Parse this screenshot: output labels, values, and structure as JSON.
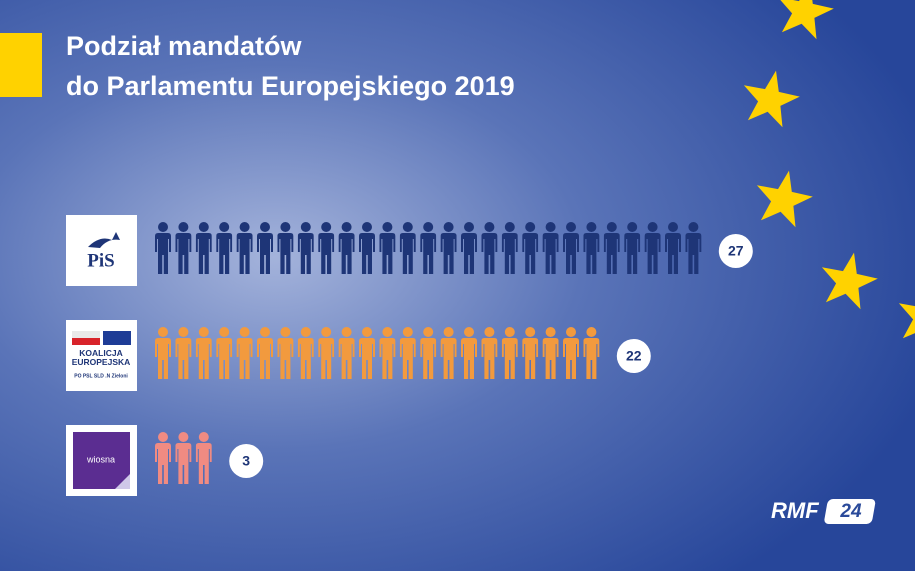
{
  "chart_data": {
    "type": "pictogram",
    "title": [
      "Podział mandatów",
      "do Parlamentu Europejskiego 2019"
    ],
    "categories": [
      "PiS",
      "KOALICJA EUROPEJSKA",
      "wiosna"
    ],
    "category_notes": [
      null,
      "PO PSL SLD .N Zieloni",
      null
    ],
    "series": [
      {
        "values": [
          27,
          22,
          3
        ],
        "colors": [
          "#1e3577",
          "#f29a3e",
          "#f08b82"
        ]
      }
    ]
  },
  "footer": {
    "brand": "RMF",
    "badge": "24"
  }
}
